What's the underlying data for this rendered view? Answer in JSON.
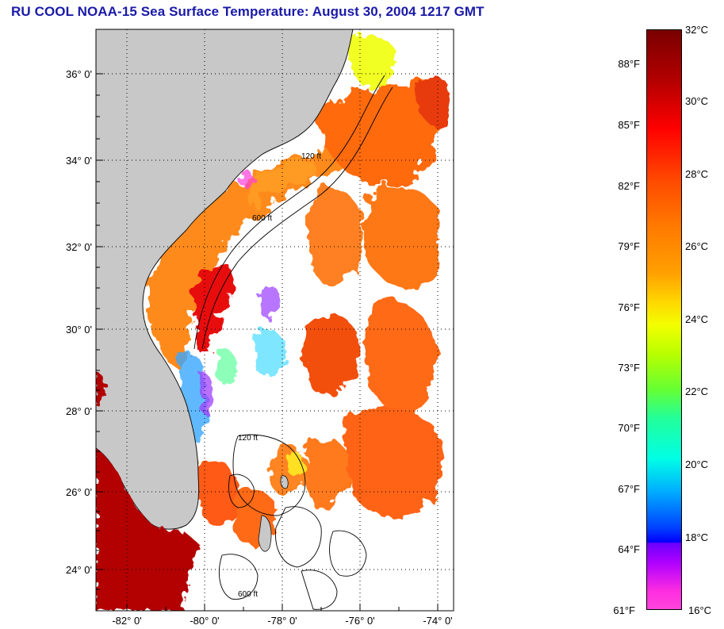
{
  "title": "RU COOL  NOAA-15  Sea Surface Temperature:  August 30, 2004 1217 GMT",
  "map": {
    "lat_labels": [
      "36° 0'",
      "34° 0'",
      "32° 0'",
      "30° 0'",
      "28° 0'",
      "26° 0'",
      "24° 0'"
    ],
    "lon_labels": [
      "-82° 0'",
      "-80° 0'",
      "-78° 0'",
      "-76° 0'",
      "-74° 0'"
    ],
    "depth_labels": [
      "120 ft",
      "600 ft"
    ],
    "colors": {
      "land": "#c8c8c8",
      "water_nodata": "#ffffff",
      "gridline": "#000000"
    }
  },
  "colorbar": {
    "celsius_labels": [
      "32°C",
      "30°C",
      "28°C",
      "26°C",
      "24°C",
      "22°C",
      "20°C",
      "18°C",
      "16°C"
    ],
    "fahrenheit_labels": [
      "88°F",
      "85°F",
      "82°F",
      "79°F",
      "76°F",
      "73°F",
      "70°F",
      "67°F",
      "64°F",
      "61°F"
    ]
  }
}
